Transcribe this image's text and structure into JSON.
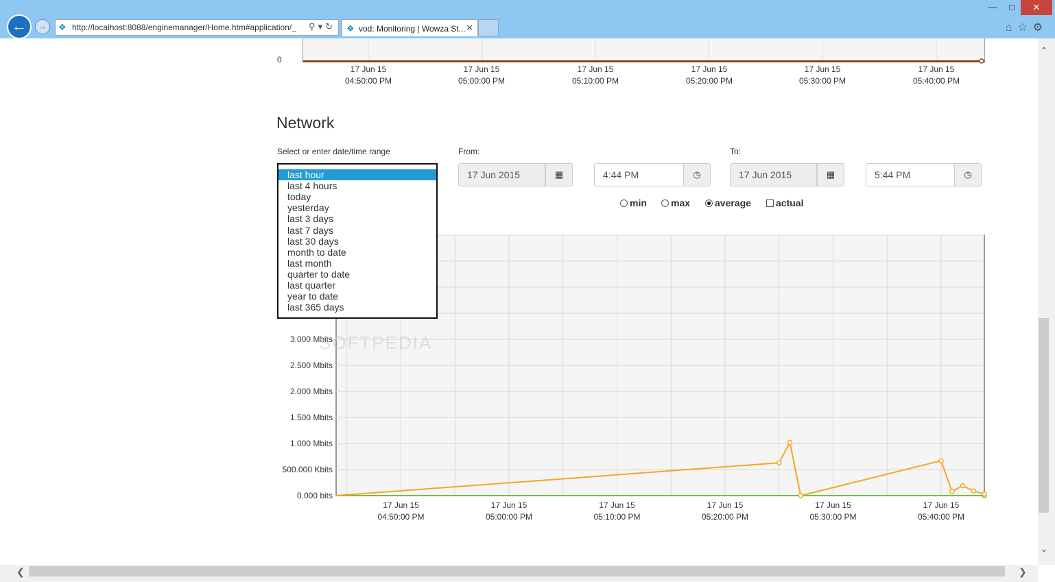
{
  "browser": {
    "url": "http://localhost:8088/enginemanager/Home.htm#application/_",
    "tab_title": "vod: Monitoring | Wowza St...",
    "window_controls": [
      "—",
      "□",
      "✕"
    ],
    "toolbar_icons": [
      "home-icon",
      "star-icon",
      "gear-icon"
    ]
  },
  "top_chart": {
    "zero_label": "0",
    "x_ticks": [
      {
        "date": "17 Jun 15",
        "time": "04:50:00 PM"
      },
      {
        "date": "17 Jun 15",
        "time": "05:00:00 PM"
      },
      {
        "date": "17 Jun 15",
        "time": "05:10:00 PM"
      },
      {
        "date": "17 Jun 15",
        "time": "05:20:00 PM"
      },
      {
        "date": "17 Jun 15",
        "time": "05:30:00 PM"
      },
      {
        "date": "17 Jun 15",
        "time": "05:40:00 PM"
      }
    ]
  },
  "network": {
    "title": "Network",
    "range_label": "Select or enter date/time range",
    "from_label": "From:",
    "to_label": "To:",
    "from_date": "17 Jun 2015",
    "from_time": "4:44 PM",
    "to_date": "17 Jun 2015",
    "to_time": "5:44 PM",
    "range_options": [
      "last hour",
      "last 4 hours",
      "today",
      "yesterday",
      "last 3 days",
      "last 7 days",
      "last 30 days",
      "month to date",
      "last month",
      "quarter to date",
      "last quarter",
      "year to date",
      "last 365 days"
    ],
    "selected_range": "last hour",
    "modes": [
      {
        "label": "min",
        "type": "radio",
        "checked": false
      },
      {
        "label": "max",
        "type": "radio",
        "checked": false
      },
      {
        "label": "average",
        "type": "radio",
        "checked": true
      },
      {
        "label": "actual",
        "type": "checkbox",
        "checked": false
      }
    ]
  },
  "chart_data": {
    "type": "line",
    "y_tick_labels": [
      "0.000 bits",
      "500.000 Kbits",
      "1.000 Mbits",
      "1.500 Mbits",
      "2.000 Mbits",
      "2.500 Mbits",
      "3.000 Mbits"
    ],
    "y_tick_values": [
      0,
      0.5,
      1.0,
      1.5,
      2.0,
      2.5,
      3.0
    ],
    "ylim": [
      0,
      5.0
    ],
    "xlim": [
      "16:44",
      "17:44"
    ],
    "x_tick_labels": [
      {
        "date": "17 Jun 15",
        "time": "04:50:00 PM",
        "value": "16:50"
      },
      {
        "date": "17 Jun 15",
        "time": "05:00:00 PM",
        "value": "17:00"
      },
      {
        "date": "17 Jun 15",
        "time": "05:10:00 PM",
        "value": "17:10"
      },
      {
        "date": "17 Jun 15",
        "time": "05:20:00 PM",
        "value": "17:20"
      },
      {
        "date": "17 Jun 15",
        "time": "05:30:00 PM",
        "value": "17:30"
      },
      {
        "date": "17 Jun 15",
        "time": "05:40:00 PM",
        "value": "17:40"
      }
    ],
    "series": [
      {
        "color": "#f5a623",
        "x": [
          "16:44",
          "17:25",
          "17:26",
          "17:27",
          "17:40",
          "17:41",
          "17:42",
          "17:43",
          "17:44"
        ],
        "values": [
          0,
          0.63,
          1.02,
          0,
          0.67,
          0.08,
          0.19,
          0.09,
          0.03
        ]
      },
      {
        "color": "#6cc04a",
        "x": [
          "16:44",
          "17:44"
        ],
        "values": [
          0,
          0
        ]
      }
    ],
    "grid": true,
    "watermark": "SOFTPEDIA"
  }
}
